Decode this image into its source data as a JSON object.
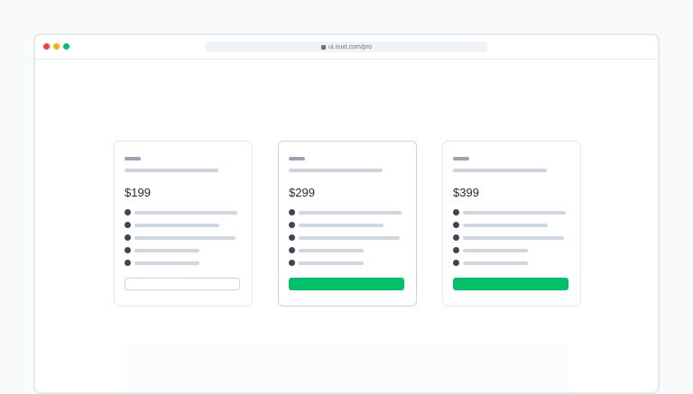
{
  "browser": {
    "url": "ui.nuxt.com/pro",
    "dots": [
      "#ff3b3b",
      "#f5b400",
      "#00c16a"
    ]
  },
  "plans": [
    {
      "price": "$199",
      "highlighted": false,
      "button": "outline",
      "features": [
        114,
        94,
        112,
        72,
        72
      ]
    },
    {
      "price": "$299",
      "highlighted": true,
      "button": "filled",
      "features": [
        114,
        94,
        112,
        72,
        72
      ]
    },
    {
      "price": "$399",
      "highlighted": false,
      "button": "filled",
      "features": [
        114,
        94,
        112,
        72,
        72
      ]
    }
  ],
  "colors": {
    "accent": "#00c16a"
  }
}
